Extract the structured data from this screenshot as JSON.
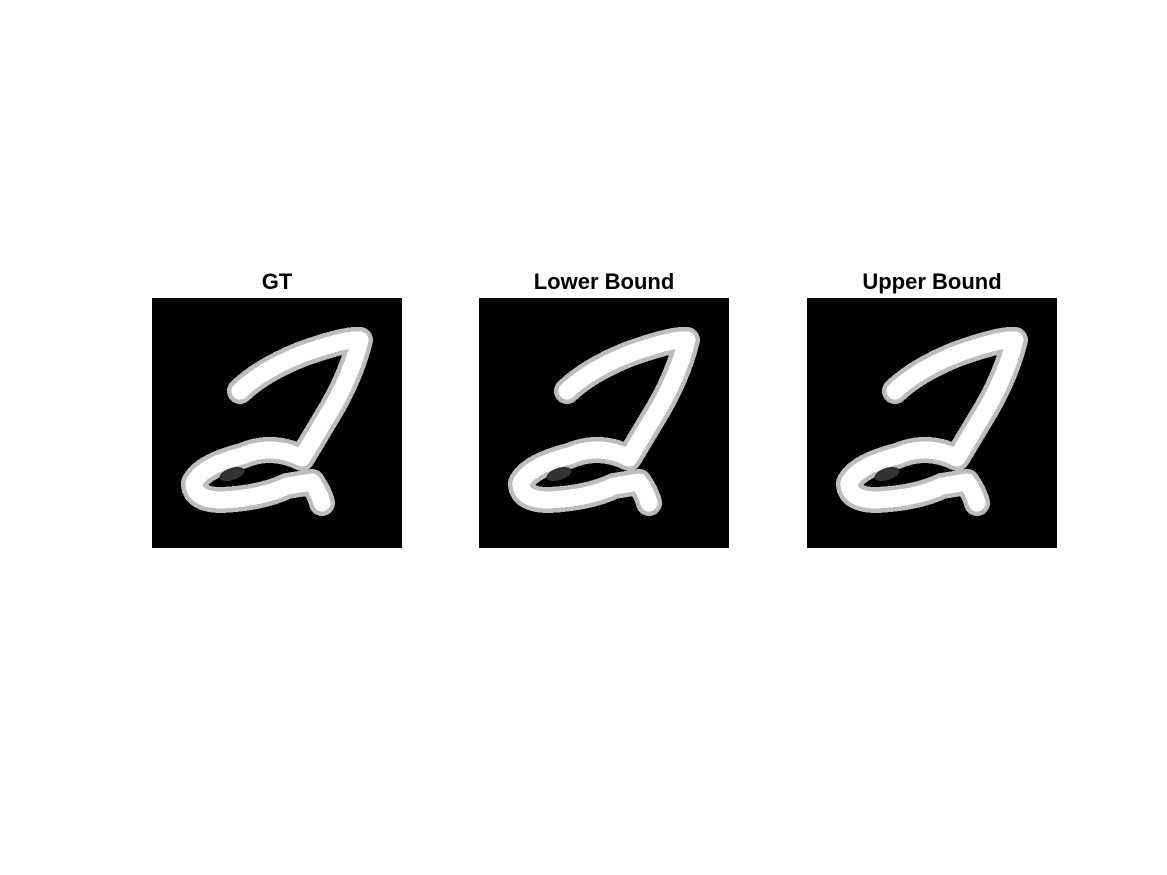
{
  "panels": [
    {
      "title": "GT"
    },
    {
      "title": "Lower Bound"
    },
    {
      "title": "Upper Bound"
    }
  ],
  "colors": {
    "background": "#ffffff",
    "image_background": "#000000",
    "stroke": "#ffffff",
    "stroke_soft": "#bdbdbd"
  }
}
